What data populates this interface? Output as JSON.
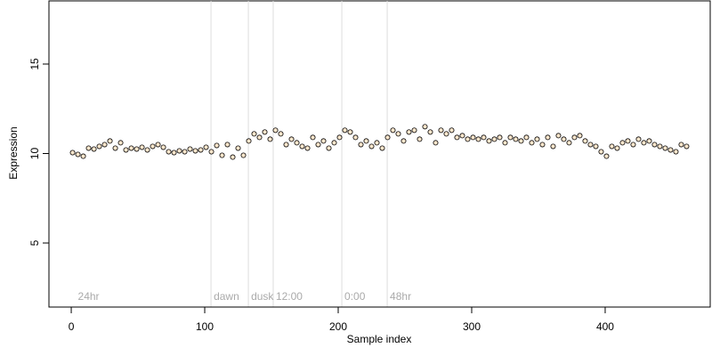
{
  "chart_data": {
    "type": "scatter",
    "x_label": "Sample index",
    "y_label": "Expression",
    "xlim": [
      -16.7,
      478.7
    ],
    "ylim": [
      1.42,
      18.58
    ],
    "xticks": [
      0,
      100,
      200,
      300,
      400
    ],
    "yticks": [
      5,
      10,
      15
    ],
    "vlines": [
      104.7,
      132.7,
      151.3,
      202.7,
      236.7
    ],
    "annotations": [
      {
        "text": "24hr",
        "x": 3
      },
      {
        "text": "dawn",
        "x": 104.7
      },
      {
        "text": "dusk",
        "x": 132.7
      },
      {
        "text": "12:00",
        "x": 151.3
      },
      {
        "text": "0:00",
        "x": 202.7
      },
      {
        "text": "48hr",
        "x": 236.7
      }
    ],
    "series": [
      {
        "color": "#fbe6cc",
        "x": [
          1,
          5,
          9,
          13,
          17,
          21,
          25,
          29,
          33,
          37,
          41,
          45,
          49,
          53,
          57,
          61,
          65,
          69,
          73,
          77,
          81,
          85,
          89,
          93,
          97,
          101,
          105,
          109,
          113,
          117,
          121,
          125,
          129,
          133,
          137,
          141,
          145,
          149,
          153,
          157,
          161,
          165,
          169,
          173,
          177,
          181,
          185,
          189,
          193,
          197,
          201,
          205,
          209,
          213,
          217,
          221,
          225,
          229,
          233,
          237,
          241,
          245,
          249,
          253,
          257,
          261,
          265,
          269,
          273,
          277,
          281,
          285,
          289,
          293,
          297,
          301,
          305,
          309,
          313,
          317,
          321,
          325,
          329,
          333,
          337,
          341,
          345,
          349,
          353,
          357,
          361,
          365,
          369,
          373,
          377,
          381,
          385,
          389,
          393,
          397,
          401,
          405,
          409,
          413,
          417,
          421,
          425,
          429,
          433,
          437,
          441,
          445,
          449,
          453,
          457,
          461
        ],
        "values": [
          10.05,
          9.95,
          9.85,
          10.3,
          10.25,
          10.4,
          10.5,
          10.7,
          10.3,
          10.6,
          10.2,
          10.3,
          10.25,
          10.35,
          10.2,
          10.4,
          10.5,
          10.35,
          10.1,
          10.05,
          10.15,
          10.1,
          10.25,
          10.15,
          10.2,
          10.35,
          10.1,
          10.45,
          9.9,
          10.5,
          9.8,
          10.3,
          9.9,
          10.7,
          11.1,
          10.9,
          11.2,
          10.8,
          11.3,
          11.1,
          10.5,
          10.8,
          10.6,
          10.4,
          10.3,
          10.9,
          10.5,
          10.7,
          10.3,
          10.6,
          10.9,
          11.3,
          11.2,
          10.9,
          10.5,
          10.7,
          10.4,
          10.6,
          10.3,
          10.9,
          11.3,
          11.1,
          10.7,
          11.2,
          11.3,
          10.8,
          11.5,
          11.2,
          10.6,
          11.3,
          11.1,
          11.3,
          10.9,
          11.0,
          10.8,
          10.9,
          10.8,
          10.9,
          10.7,
          10.8,
          10.9,
          10.6,
          10.9,
          10.8,
          10.7,
          10.9,
          10.6,
          10.8,
          10.5,
          10.9,
          10.4,
          11.0,
          10.8,
          10.6,
          10.9,
          11.0,
          10.7,
          10.5,
          10.4,
          10.1,
          9.85,
          10.4,
          10.3,
          10.6,
          10.7,
          10.5,
          10.8,
          10.6,
          10.7,
          10.5,
          10.4,
          10.3,
          10.2,
          10.1,
          10.5,
          10.4
        ]
      }
    ]
  }
}
